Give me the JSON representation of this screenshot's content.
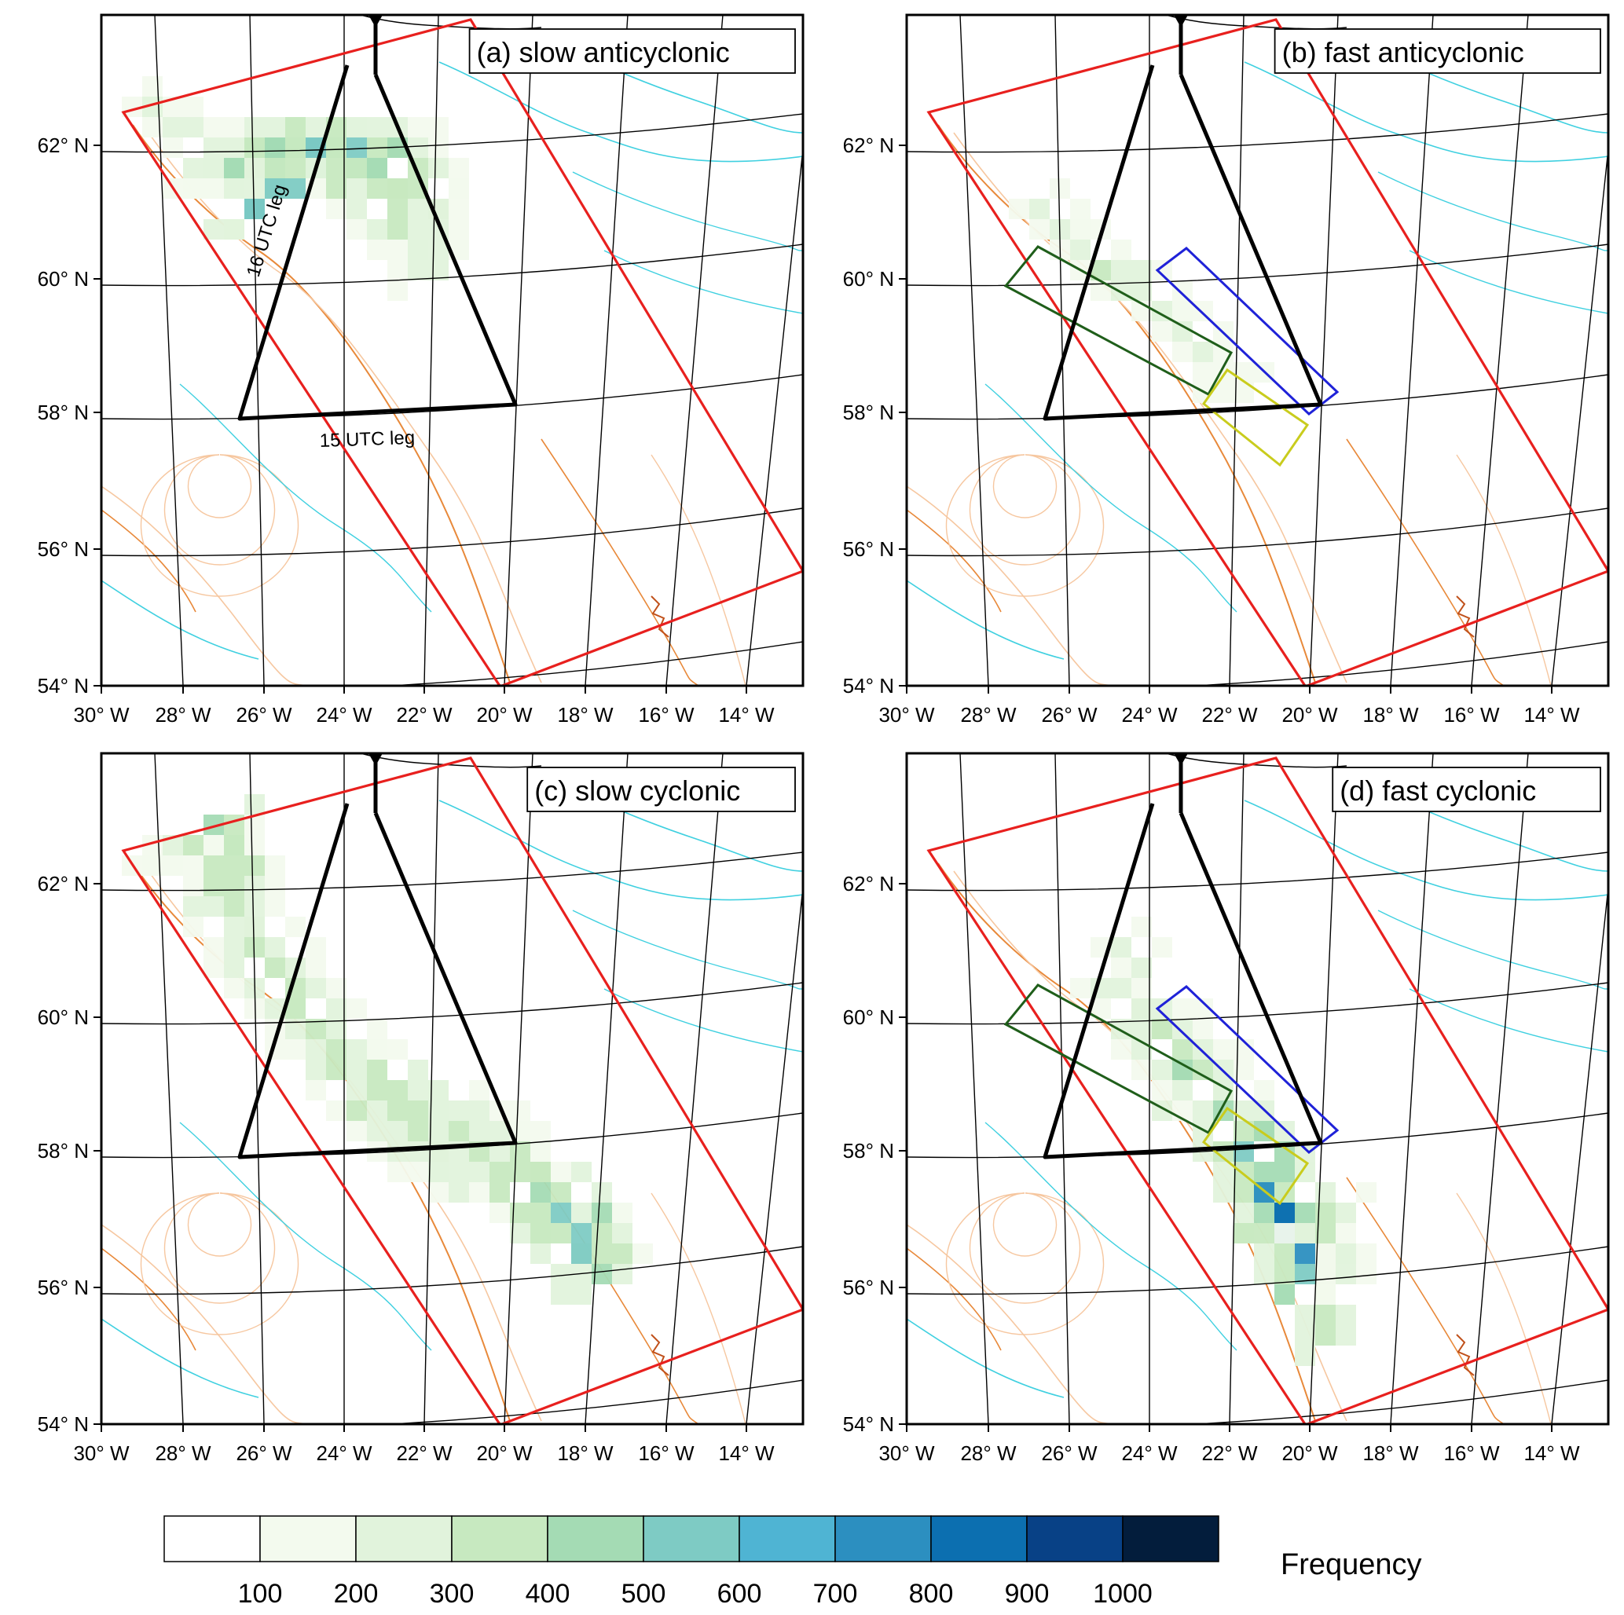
{
  "panels": [
    {
      "title": "(a) slow anticyclonic",
      "show_boxes": false,
      "show_leg_labels": true,
      "pattern": "a"
    },
    {
      "title": "(b) fast anticyclonic",
      "show_boxes": true,
      "show_leg_labels": false,
      "pattern": "b"
    },
    {
      "title": "(c) slow cyclonic",
      "show_boxes": false,
      "show_leg_labels": false,
      "pattern": "c"
    },
    {
      "title": "(d) fast cyclonic",
      "show_boxes": true,
      "show_leg_labels": false,
      "pattern": "d"
    }
  ],
  "leg_labels": {
    "leg16": "16 UTC leg",
    "leg15": "15 UTC leg"
  },
  "lat_labels": [
    "62° N",
    "60° N",
    "58° N",
    "56° N",
    "54° N"
  ],
  "lon_labels": [
    "30° W",
    "28° W",
    "26° W",
    "24° W",
    "22° W",
    "20° W",
    "18° W",
    "16° W",
    "14° W"
  ],
  "colorbar": {
    "title": "Frequency",
    "labels": [
      "100",
      "200",
      "300",
      "400",
      "500",
      "600",
      "700",
      "800",
      "900",
      "1000"
    ],
    "colors": [
      "#ffffff",
      "#f3faee",
      "#e1f3dc",
      "#c7e9c0",
      "#a4dbb4",
      "#7ecbc4",
      "#4fb4d3",
      "#2c8fc0",
      "#0c6fb0",
      "#084186",
      "#031d3c"
    ]
  },
  "colors": {
    "domain_box": "#e8201e",
    "flight_track": "#000000",
    "box_green": "#1f5e1a",
    "box_blue": "#1f22d8",
    "box_yellow": "#c9cc1d",
    "bathy_orange": "#e8893a",
    "bathy_light": "#f6c7a0",
    "bathy_cyan": "#3fd0e0"
  }
}
